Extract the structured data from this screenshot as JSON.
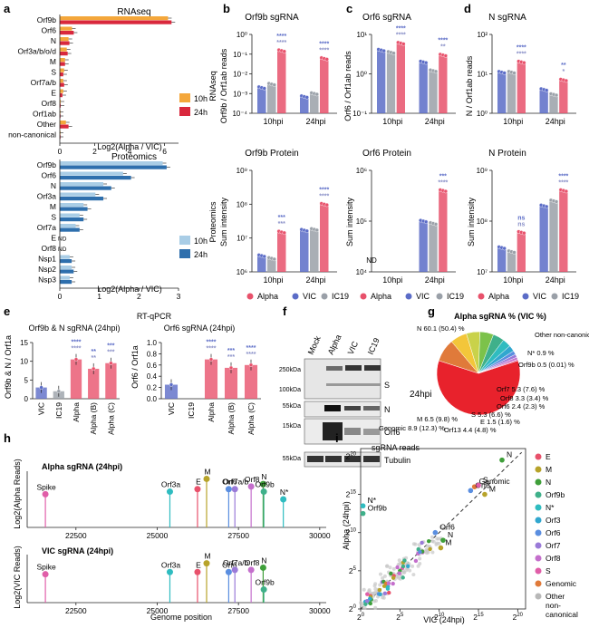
{
  "colors": {
    "alpha": "#e8516b",
    "vic": "#5b6cc7",
    "ic19": "#9aa0a8",
    "orange10h": "#f4a73b",
    "red24h": "#d9283d",
    "lightblue10h": "#a9cde6",
    "darkblue24h": "#2e6fad"
  },
  "panels": {
    "a": "a",
    "b": "b",
    "c": "c",
    "d": "d",
    "e": "e",
    "f": "f",
    "g": "g",
    "h": "h",
    "i": "i"
  },
  "panel_a": {
    "rna_title": "RNAseq",
    "prot_title": "Proteomics",
    "xlabel": "Log2(Alpha / VIC)",
    "legend": [
      "10h",
      "24h"
    ],
    "nd": "ND"
  },
  "panel_bcd": {
    "b_title": "Orf9b sgRNA",
    "b_ylabel": "Orf9b / Orf1ab reads",
    "b_ptitle": "Orf9b Protein",
    "c_title": "Orf6 sgRNA",
    "c_ylabel": "Orf6 / Orf1ab reads",
    "c_ptitle": "Orf6 Protein",
    "d_title": "N sgRNA",
    "d_ylabel": "N / Orf1ab reads",
    "d_ptitle": "N Protein",
    "row_rna": "RNAseq",
    "row_prot": "Proteomics",
    "prot_ylabel": "Sum intensity",
    "groups": [
      "10hpi",
      "24hpi"
    ],
    "legend": [
      "Alpha",
      "VIC",
      "IC19"
    ],
    "nd": "ND"
  },
  "panel_e": {
    "title": "RT-qPCR",
    "sub1": "Orf9b & N sgRNA (24hpi)",
    "sub2": "Orf6 sgRNA (24hpi)",
    "ylabel1": "Orf9b & N / Orf1a",
    "ylabel2": "Orf6 / Orf1a",
    "cats": [
      "VIC",
      "IC19",
      "Alpha",
      "Alpha (B)",
      "Alpha (C)"
    ]
  },
  "panel_f": {
    "lanes": [
      "Mock",
      "Alpha",
      "VIC",
      "IC19"
    ],
    "markers": [
      "250kDa",
      "100kDa",
      "55kDa",
      "15kDa",
      "55kDa"
    ],
    "bands": [
      "S",
      "N",
      "Orf6",
      "Tubulin"
    ]
  },
  "panel_g": {
    "title": "Alpha sgRNA % (VIC %)",
    "center": "24hpi"
  },
  "panel_h": {
    "alpha_title": "Alpha sgRNA (24hpi)",
    "vic_title": "VIC sgRNA (24hpi)",
    "ylabel_alpha": "Log2(Alpha Reads)",
    "ylabel_vic": "Log2(VIC Reads)",
    "xlabel": "Genome position"
  },
  "panel_i": {
    "title": "sgRNA reads",
    "xlabel": "VIC (24hpi)",
    "ylabel": "Alpha (24hpi)",
    "legend": [
      "E",
      "M",
      "N",
      "Orf9b",
      "N*",
      "Orf3",
      "Orf6",
      "Orf7",
      "Orf8",
      "S",
      "Genomic",
      "Other non-canonical"
    ],
    "legend_colors": [
      "#e8516b",
      "#b7a32a",
      "#3f9f3a",
      "#3fb08a",
      "#2fbcc0",
      "#31a7cf",
      "#5a8ee0",
      "#9a7ad8",
      "#c46fcc",
      "#e05ea8",
      "#e07a3a",
      "#b8b8b8"
    ]
  },
  "chart_data": [
    {
      "panel": "a",
      "type": "bar",
      "title": "RNAseq",
      "xlabel": "Log2(Alpha / VIC)",
      "categories": [
        "Orf9b",
        "Orf6",
        "N",
        "Orf3a/b/o/d",
        "M",
        "S",
        "Orf7a/b",
        "E",
        "Orf8",
        "Orf1ab",
        "Other",
        "non-canonical"
      ],
      "series": [
        {
          "name": "10h",
          "values": [
            6.2,
            0.7,
            0.5,
            0.4,
            0.3,
            0.25,
            0.2,
            0.2,
            0.05,
            0.0,
            0.35,
            0.0
          ]
        },
        {
          "name": "24h",
          "values": [
            6.4,
            0.8,
            0.55,
            0.45,
            0.3,
            0.2,
            0.25,
            0.15,
            0.05,
            0.0,
            0.5,
            0.0
          ]
        }
      ],
      "xticks": [
        0,
        2,
        4,
        6
      ]
    },
    {
      "panel": "a",
      "type": "bar",
      "title": "Proteomics",
      "xlabel": "Log2(Alpha / VIC)",
      "categories": [
        "Orf9b",
        "Orf6",
        "N",
        "Orf3a",
        "M",
        "S",
        "Orf7a",
        "E",
        "Orf8",
        "Nsp1",
        "Nsp2",
        "Nsp3"
      ],
      "series": [
        {
          "name": "10h",
          "values": [
            2.6,
            1.6,
            1.1,
            0.9,
            0.6,
            0.5,
            0.4,
            null,
            null,
            0.25,
            0.3,
            0.25
          ]
        },
        {
          "name": "24h",
          "values": [
            2.7,
            1.8,
            1.3,
            1.1,
            0.7,
            0.6,
            0.5,
            null,
            null,
            0.3,
            0.35,
            0.3
          ]
        }
      ],
      "not_detected": [
        "Orf6 (10h)",
        "E",
        "Orf8",
        "Nsp1",
        "Nsp2",
        "Nsp3"
      ],
      "xticks": [
        0,
        1,
        2,
        3
      ]
    },
    {
      "panel": "b",
      "type": "bar",
      "title": "Orf9b sgRNA",
      "ylabel": "Orf9b / Orf1ab reads",
      "scale": "log",
      "categories": [
        "10hpi",
        "24hpi"
      ],
      "series": [
        {
          "name": "Alpha",
          "values": [
            0.15,
            0.06
          ]
        },
        {
          "name": "VIC",
          "values": [
            0.002,
            0.0007
          ]
        },
        {
          "name": "IC19",
          "values": [
            0.003,
            0.001
          ]
        }
      ],
      "significance": [
        "****",
        "****",
        "****",
        "****"
      ]
    },
    {
      "panel": "c",
      "type": "bar",
      "title": "Orf6 sgRNA",
      "ylabel": "Orf6 / Orf1ab reads",
      "scale": "log",
      "categories": [
        "10hpi",
        "24hpi"
      ],
      "series": [
        {
          "name": "Alpha",
          "values": [
            6,
            3
          ]
        },
        {
          "name": "VIC",
          "values": [
            4,
            2
          ]
        },
        {
          "name": "IC19",
          "values": [
            3.5,
            1.2
          ]
        }
      ],
      "significance": [
        "****",
        "****",
        "****",
        "**"
      ]
    },
    {
      "panel": "d",
      "type": "bar",
      "title": "N sgRNA",
      "ylabel": "N / Orf1ab reads",
      "scale": "log",
      "categories": [
        "10hpi",
        "24hpi"
      ],
      "series": [
        {
          "name": "Alpha",
          "values": [
            20,
            7
          ]
        },
        {
          "name": "VIC",
          "values": [
            11,
            4
          ]
        },
        {
          "name": "IC19",
          "values": [
            11,
            3
          ]
        }
      ],
      "significance": [
        "****",
        "****",
        "**",
        "*"
      ]
    },
    {
      "panel": "b-prot",
      "type": "bar",
      "title": "Orf9b Protein",
      "ylabel": "Sum intensity",
      "scale": "log",
      "categories": [
        "10hpi",
        "24hpi"
      ],
      "series": [
        {
          "name": "Alpha",
          "values": [
            15000000,
            100000000
          ]
        },
        {
          "name": "VIC",
          "values": [
            3000000,
            17000000
          ]
        },
        {
          "name": "IC19",
          "values": [
            2500000,
            18000000
          ]
        }
      ],
      "significance": [
        "***",
        "***",
        "****",
        "****"
      ]
    },
    {
      "panel": "c-prot",
      "type": "bar",
      "title": "Orf6 Protein",
      "ylabel": "Sum intensity",
      "scale": "log",
      "categories": [
        "10hpi",
        "24hpi"
      ],
      "series": [
        {
          "name": "Alpha",
          "values": [
            null,
            400000
          ]
        },
        {
          "name": "VIC",
          "values": [
            null,
            100000
          ]
        },
        {
          "name": "IC19",
          "values": [
            null,
            90000
          ]
        }
      ],
      "significance": [
        "***",
        "****"
      ]
    },
    {
      "panel": "d-prot",
      "type": "bar",
      "title": "N Protein",
      "ylabel": "Sum intensity",
      "scale": "log",
      "categories": [
        "10hpi",
        "24hpi"
      ],
      "series": [
        {
          "name": "Alpha",
          "values": [
            60000000,
            400000000
          ]
        },
        {
          "name": "VIC",
          "values": [
            30000000,
            200000000
          ]
        },
        {
          "name": "IC19",
          "values": [
            25000000,
            250000000
          ]
        }
      ],
      "significance": [
        "ns",
        "ns",
        "****",
        "****"
      ]
    },
    {
      "panel": "e1",
      "type": "bar",
      "title": "Orf9b & N sgRNA (24hpi)",
      "ylabel": "Orf9b & N / Orf1a",
      "categories": [
        "VIC",
        "IC19",
        "Alpha",
        "Alpha (B)",
        "Alpha (C)"
      ],
      "values": [
        3,
        2,
        10.5,
        8,
        9.5
      ],
      "ylim": [
        0,
        15
      ],
      "yticks": [
        0,
        5,
        10,
        15
      ],
      "significance": [
        "****",
        "****",
        "**",
        "**",
        "***",
        "***"
      ]
    },
    {
      "panel": "e2",
      "type": "bar",
      "title": "Orf6 sgRNA (24hpi)",
      "ylabel": "Orf6 / Orf1a",
      "categories": [
        "VIC",
        "IC19",
        "Alpha",
        "Alpha (B)",
        "Alpha (C)"
      ],
      "values": [
        0.25,
        0.0,
        0.7,
        0.55,
        0.6
      ],
      "ylim": [
        0,
        1.0
      ],
      "yticks": [
        0.0,
        0.2,
        0.4,
        0.6,
        0.8,
        1.0
      ],
      "significance": [
        "****",
        "****",
        "***",
        "***",
        "****",
        "****"
      ]
    },
    {
      "panel": "g",
      "type": "pie",
      "title": "Alpha sgRNA % (VIC %)",
      "labels": [
        "N 60.1 (50.4) %",
        "Genomic 8.9 (12.3) %",
        "M 6.5 (9.8) %",
        "S 5.3 (6.6) %",
        "Orf7 5.3 (7.6) %",
        "Orf13 4.4 (4.8) %",
        "Orf8 3.3 (3.4) %",
        "Orf6 2.4 (2.3) %",
        "E 1.5 (1.6) %",
        "Other non-canonical 1.2 (1.1) %",
        "N* 0.9 %",
        "Orf9b 0.5 (0.01) %"
      ],
      "values": [
        60.1,
        8.9,
        6.5,
        5.3,
        5.3,
        4.4,
        3.3,
        2.4,
        1.5,
        1.2,
        0.9,
        0.5
      ]
    },
    {
      "panel": "h-alpha",
      "type": "scatter",
      "title": "Alpha sgRNA (24hpi)",
      "xlabel": "Genome position",
      "ylabel": "Log2(Alpha Reads)",
      "labels": [
        "Spike",
        "Orf3a",
        "E",
        "M",
        "Orf6",
        "Orf7a/b",
        "Orf8",
        "N",
        "Orf9b",
        "N*"
      ],
      "x": [
        21560,
        25390,
        26240,
        26520,
        27200,
        27390,
        27890,
        28260,
        28280,
        28880
      ],
      "y": [
        13,
        14,
        15,
        19,
        15,
        15,
        16,
        17,
        14,
        11
      ],
      "xticks": [
        22500,
        25000,
        27500,
        30000
      ]
    },
    {
      "panel": "h-vic",
      "type": "scatter",
      "title": "VIC sgRNA (24hpi)",
      "xlabel": "Genome position",
      "ylabel": "Log2(VIC Reads)",
      "labels": [
        "Spike",
        "Orf3a",
        "E",
        "M",
        "Orf6",
        "Orf7a/b",
        "Orf8",
        "N",
        "Orf9b"
      ],
      "x": [
        21560,
        25390,
        26240,
        26520,
        27200,
        27390,
        27890,
        28260,
        28280
      ],
      "y": [
        13,
        14,
        14,
        18,
        14,
        15,
        15,
        16,
        6
      ],
      "xticks": [
        22500,
        25000,
        27500,
        30000
      ]
    },
    {
      "panel": "i",
      "type": "scatter",
      "title": "sgRNA reads",
      "xlabel": "VIC (24hpi)",
      "ylabel": "Alpha (24hpi)",
      "xticks": [
        "2^0",
        "2^5",
        "2^10",
        "2^15",
        "2^20"
      ],
      "yticks": [
        "2^0",
        "2^5",
        "2^10",
        "2^15",
        "2^20"
      ],
      "labels": [
        "N",
        "Genomic",
        "Orf6",
        "S",
        "M",
        "N*",
        "Orf9b",
        "Orf6",
        "N",
        "M"
      ],
      "x": [
        18,
        14.5,
        14,
        15,
        15.8,
        0.3,
        0.3,
        9.5,
        10.5,
        10.2
      ],
      "y": [
        19.5,
        16,
        15.5,
        16.2,
        15,
        13.5,
        12.5,
        10,
        9,
        8
      ]
    }
  ]
}
